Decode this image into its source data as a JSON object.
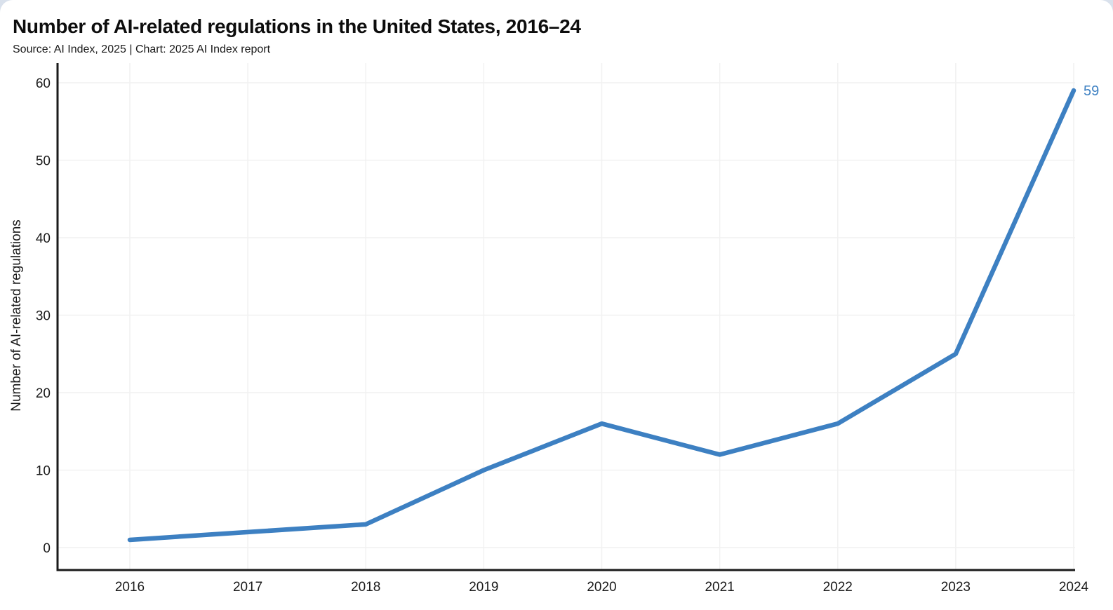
{
  "header": {
    "title": "Number of AI-related regulations in the United States, 2016–24",
    "subtitle": "Source: AI Index, 2025 | Chart: 2025 AI Index report"
  },
  "chart_data": {
    "type": "line",
    "title": "Number of AI-related regulations in the United States, 2016–24",
    "subtitle": "Source: AI Index, 2025 | Chart: 2025 AI Index report",
    "categories": [
      "2016",
      "2017",
      "2018",
      "2019",
      "2020",
      "2021",
      "2022",
      "2023",
      "2024"
    ],
    "series": [
      {
        "name": "Number of AI-related regulations",
        "values": [
          1,
          2,
          3,
          10,
          16,
          12,
          16,
          25,
          59
        ]
      }
    ],
    "xlabel": "",
    "ylabel": "Number of AI-related regulations",
    "ylim": [
      0,
      60
    ],
    "yticks": [
      0,
      10,
      20,
      30,
      40,
      50,
      60
    ],
    "grid": true,
    "legend_position": "none",
    "end_label": "59",
    "colors": {
      "line": "#3d80c2",
      "end_label": "#3d80c2",
      "axis": "#1a1a1a",
      "grid": "#f1f1f1",
      "text": "#1a1a1a"
    }
  }
}
